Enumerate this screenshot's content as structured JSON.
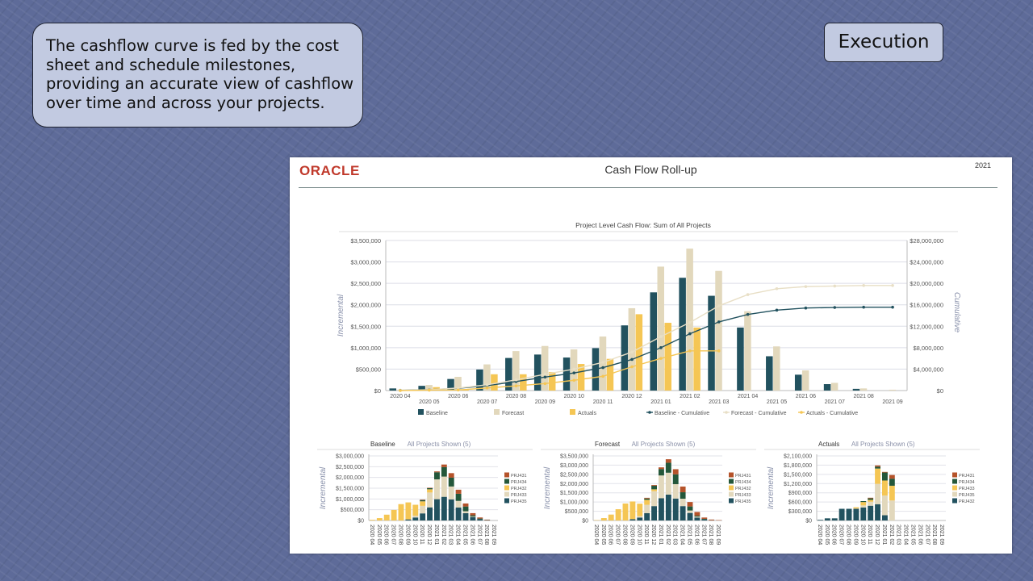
{
  "slide": {
    "callout": "The cashflow curve is fed by the cost sheet and schedule milestones, providing an accurate view of cashflow over time and across your projects.",
    "tag": "Execution"
  },
  "report": {
    "logo": "ORACLE",
    "title": "Cash Flow Roll-up",
    "year": "2021"
  },
  "colors": {
    "baseline": "#22525f",
    "forecast": "#e2d8bc",
    "actuals": "#f5c654",
    "prj434": "#24573a",
    "prj431": "#b5532a"
  },
  "chart_data": [
    {
      "type": "bar+line",
      "title": "Project Level Cash Flow: Sum of All Projects",
      "ylabel": "Incremental",
      "y2label": "Cumulative",
      "ylim": [
        0,
        3500000
      ],
      "y2lim": [
        0,
        28000000
      ],
      "grid": true,
      "legend_position": "bottom",
      "yticks": [
        "$0",
        "$500,000",
        "$1,000,000",
        "$1,500,000",
        "$2,000,000",
        "$2,500,000",
        "$3,000,000",
        "$3,500,000"
      ],
      "y2ticks": [
        "$0",
        "$4,000,000",
        "$8,000,000",
        "$12,000,000",
        "$16,000,000",
        "$20,000,000",
        "$24,000,000",
        "$28,000,000"
      ],
      "categories": [
        "2020 04",
        "2020 05",
        "2020 06",
        "2020 07",
        "2020 08",
        "2020 09",
        "2020 10",
        "2020 11",
        "2020 12",
        "2021 01",
        "2021 02",
        "2021 03",
        "2021 04",
        "2021 05",
        "2021 06",
        "2021 07",
        "2021 08",
        "2021 09"
      ],
      "series": [
        {
          "name": "Baseline",
          "type": "bar",
          "color": "#22525f",
          "values": [
            50000,
            110000,
            270000,
            490000,
            760000,
            840000,
            770000,
            990000,
            1520000,
            2290000,
            2630000,
            2210000,
            1470000,
            800000,
            370000,
            150000,
            40000,
            0
          ]
        },
        {
          "name": "Forecast",
          "type": "bar",
          "color": "#e2d8bc",
          "values": [
            20000,
            130000,
            320000,
            610000,
            920000,
            1040000,
            960000,
            1260000,
            1920000,
            2890000,
            3310000,
            2790000,
            1850000,
            1030000,
            470000,
            180000,
            50000,
            20000
          ]
        },
        {
          "name": "Actuals",
          "type": "bar",
          "color": "#f5c654",
          "values": [
            0,
            80000,
            30000,
            380000,
            380000,
            430000,
            620000,
            740000,
            1780000,
            1580000,
            1470000,
            0,
            null,
            null,
            null,
            null,
            null,
            null
          ]
        },
        {
          "name": "Baseline - Cumulative",
          "type": "line",
          "axis": "right",
          "color": "#22525f",
          "values": [
            50000,
            160000,
            430000,
            920000,
            1680000,
            2520000,
            3290000,
            4280000,
            5800000,
            8000000,
            10600000,
            12800000,
            14200000,
            15000000,
            15400000,
            15500000,
            15550000,
            15550000
          ]
        },
        {
          "name": "Forecast - Cumulative",
          "type": "line",
          "axis": "right",
          "color": "#e8dfc6",
          "values": [
            20000,
            150000,
            470000,
            1080000,
            2000000,
            3040000,
            4000000,
            5260000,
            7180000,
            10070000,
            12700000,
            15800000,
            17900000,
            19000000,
            19400000,
            19500000,
            19600000,
            19600000
          ]
        },
        {
          "name": "Actuals  - Cumulative",
          "type": "line",
          "axis": "right",
          "color": "#f5c654",
          "values": [
            0,
            80000,
            110000,
            490000,
            870000,
            1300000,
            1920000,
            2660000,
            4440000,
            6000000,
            7400000,
            7400000,
            null,
            null,
            null,
            null,
            null,
            null
          ]
        }
      ]
    },
    {
      "type": "stacked-bar",
      "title": "Baseline",
      "subtitle": "All Projects Shown (5)",
      "ylabel": "Incremental",
      "ylim": [
        0,
        3000000
      ],
      "grid": true,
      "legend_position": "right",
      "yticks": [
        "$0",
        "$500,000",
        "$1,000,000",
        "$1,500,000",
        "$2,000,000",
        "$2,500,000",
        "$3,000,000"
      ],
      "categories": [
        "2020 04",
        "2020 05",
        "2020 06",
        "2020 07",
        "2020 08",
        "2020 09",
        "2020 10",
        "2020 11",
        "2020 12",
        "2021 01",
        "2021 02",
        "2021 03",
        "2021 04",
        "2021 05",
        "2021 06",
        "2021 07",
        "2021 08",
        "2021 09"
      ],
      "series": [
        {
          "name": "PRJ435",
          "color": "#22525f",
          "values": [
            0,
            0,
            0,
            0,
            0,
            50000,
            140000,
            330000,
            610000,
            990000,
            1100000,
            980000,
            600000,
            340000,
            150000,
            60000,
            10000,
            0
          ]
        },
        {
          "name": "PRJ433",
          "color": "#e2d8bc",
          "values": [
            0,
            0,
            0,
            0,
            0,
            0,
            80000,
            350000,
            690000,
            920000,
            940000,
            600000,
            310000,
            90000,
            30000,
            0,
            0,
            0
          ]
        },
        {
          "name": "PRJ432",
          "color": "#f5c654",
          "values": [
            30000,
            110000,
            270000,
            490000,
            760000,
            790000,
            510000,
            210000,
            150000,
            0,
            0,
            0,
            0,
            0,
            0,
            0,
            0,
            0
          ]
        },
        {
          "name": "PRJ434",
          "color": "#24573a",
          "values": [
            0,
            0,
            0,
            0,
            0,
            0,
            0,
            60000,
            50000,
            330000,
            440000,
            410000,
            330000,
            220000,
            60000,
            30000,
            10000,
            0
          ]
        },
        {
          "name": "PRJ431",
          "color": "#b5532a",
          "values": [
            0,
            0,
            0,
            0,
            0,
            0,
            0,
            20000,
            20000,
            40000,
            120000,
            210000,
            190000,
            140000,
            100000,
            50000,
            20000,
            0
          ]
        }
      ]
    },
    {
      "type": "stacked-bar",
      "title": "Forecast",
      "subtitle": "All Projects Shown (5)",
      "ylabel": "Incremental",
      "ylim": [
        0,
        3500000
      ],
      "grid": true,
      "legend_position": "right",
      "yticks": [
        "$0",
        "$500,000",
        "$1,000,000",
        "$1,500,000",
        "$2,000,000",
        "$2,500,000",
        "$3,000,000",
        "$3,500,000"
      ],
      "categories": [
        "2020 04",
        "2020 05",
        "2020 06",
        "2020 07",
        "2020 08",
        "2020 09",
        "2020 10",
        "2020 11",
        "2020 12",
        "2021 01",
        "2021 02",
        "2021 03",
        "2021 04",
        "2021 05",
        "2021 06",
        "2021 07",
        "2021 08",
        "2021 09"
      ],
      "series": [
        {
          "name": "PRJ435",
          "color": "#22525f",
          "values": [
            0,
            0,
            0,
            0,
            0,
            70000,
            160000,
            400000,
            780000,
            1210000,
            1400000,
            1190000,
            780000,
            410000,
            160000,
            60000,
            10000,
            0
          ]
        },
        {
          "name": "PRJ433",
          "color": "#e2d8bc",
          "values": [
            0,
            0,
            0,
            0,
            0,
            0,
            80000,
            450000,
            810000,
            1230000,
            1190000,
            780000,
            400000,
            130000,
            50000,
            0,
            0,
            0
          ]
        },
        {
          "name": "PRJ432",
          "color": "#f5c654",
          "values": [
            20000,
            130000,
            320000,
            610000,
            920000,
            960000,
            670000,
            270000,
            100000,
            0,
            0,
            0,
            0,
            0,
            0,
            0,
            0,
            0
          ]
        },
        {
          "name": "PRJ434",
          "color": "#24573a",
          "values": [
            0,
            0,
            0,
            0,
            0,
            0,
            0,
            70000,
            190000,
            350000,
            540000,
            530000,
            350000,
            220000,
            50000,
            30000,
            0,
            0
          ]
        },
        {
          "name": "PRJ431",
          "color": "#b5532a",
          "values": [
            0,
            0,
            0,
            0,
            0,
            0,
            0,
            40000,
            40000,
            90000,
            190000,
            280000,
            310000,
            240000,
            200000,
            70000,
            40000,
            20000
          ]
        }
      ]
    },
    {
      "type": "stacked-bar",
      "title": "Actuals",
      "subtitle": "All Projects Shown (5)",
      "ylabel": "Incremental",
      "ylim": [
        0,
        2100000
      ],
      "grid": true,
      "legend_position": "right",
      "yticks": [
        "$0",
        "$300,000",
        "$600,000",
        "$900,000",
        "$1,200,000",
        "$1,500,000",
        "$1,800,000",
        "$2,100,000"
      ],
      "categories": [
        "2020 04",
        "2020 05",
        "2020 06",
        "2020 07",
        "2020 08",
        "2020 09",
        "2020 10",
        "2020 11",
        "2020 12",
        "2021 01",
        "2021 02",
        "2021 03",
        "2021 04",
        "2021 05",
        "2021 06",
        "2021 07",
        "2021 08",
        "2021 09"
      ],
      "series": [
        {
          "name": "PRJ432",
          "color": "#22525f",
          "values": [
            20000,
            70000,
            70000,
            380000,
            380000,
            380000,
            420000,
            480000,
            530000,
            170000,
            0,
            0,
            0,
            0,
            0,
            0,
            0,
            0
          ]
        },
        {
          "name": "PRJ435",
          "color": "#e2d8bc",
          "values": [
            0,
            0,
            0,
            0,
            0,
            10000,
            70000,
            130000,
            660000,
            640000,
            650000,
            0,
            0,
            0,
            0,
            0,
            0,
            0
          ]
        },
        {
          "name": "PRJ433",
          "color": "#f5c654",
          "values": [
            0,
            0,
            0,
            0,
            0,
            40000,
            110000,
            60000,
            500000,
            490000,
            480000,
            0,
            0,
            0,
            0,
            0,
            0,
            0
          ]
        },
        {
          "name": "PRJ434",
          "color": "#24573a",
          "values": [
            0,
            0,
            0,
            0,
            0,
            0,
            30000,
            50000,
            60000,
            260000,
            230000,
            0,
            0,
            0,
            0,
            0,
            0,
            0
          ]
        },
        {
          "name": "PRJ431",
          "color": "#b5532a",
          "values": [
            0,
            0,
            0,
            0,
            0,
            0,
            0,
            20000,
            40000,
            20000,
            120000,
            0,
            0,
            0,
            0,
            0,
            0,
            0
          ]
        }
      ]
    }
  ]
}
